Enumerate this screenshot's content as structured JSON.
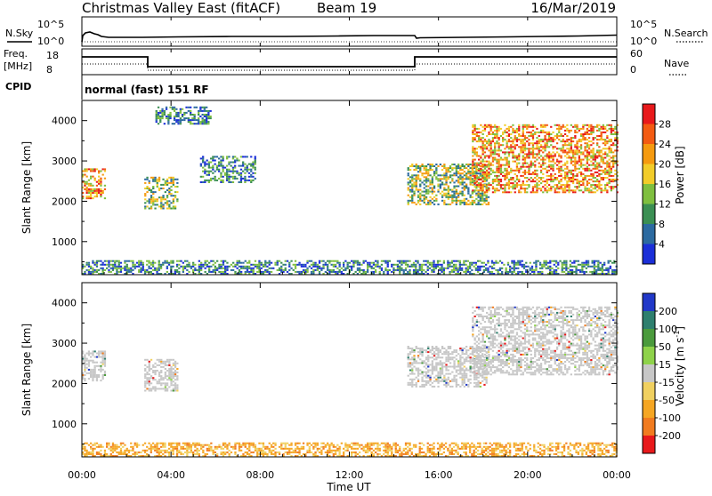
{
  "header": {
    "station": "Christmas Valley East (fitACF)",
    "beam": "Beam 19",
    "date": "16/Mar/2019"
  },
  "top_panel": {
    "left_label": "N.Sky",
    "left_ticks": [
      "10^5",
      "10^0"
    ],
    "right_label": "N.Search",
    "right_ticks": [
      "10^5",
      "10^0"
    ]
  },
  "freq_panel": {
    "left_label_line1": "Freq.",
    "left_label_line2": "[MHz]",
    "left_ticks": [
      "18",
      "8"
    ],
    "right_label": "Nave",
    "right_ticks": [
      "60",
      "0"
    ]
  },
  "cpid": {
    "label": "CPID",
    "mode": "normal (fast) 151 RF"
  },
  "power_colorbar": {
    "label": "Power [dB]",
    "ticks": [
      "28",
      "24",
      "20",
      "16",
      "12",
      "8",
      "4"
    ],
    "colors": [
      "#e8191b",
      "#f35b12",
      "#f59a0f",
      "#f2cc29",
      "#7fbf3f",
      "#3b8f53",
      "#2c6aa0",
      "#1b2fd8"
    ]
  },
  "velocity_colorbar": {
    "label_main": "Velocity [m s",
    "label_sup": "-1",
    "label_end": "]",
    "ticks": [
      "200",
      "100",
      "50",
      "15",
      "-15",
      "-50",
      "-100",
      "-200"
    ],
    "colors": [
      "#2138c8",
      "#2e7f6e",
      "#4a9a3c",
      "#8ed24a",
      "#c7c7c7",
      "#f0d060",
      "#f5a623",
      "#f17b1f",
      "#e8191b"
    ]
  },
  "x_axis": {
    "label": "Time UT",
    "ticks": [
      "00:00",
      "04:00",
      "08:00",
      "12:00",
      "16:00",
      "20:00",
      "00:00"
    ]
  },
  "y_axis": {
    "label": "Slant Range [km]",
    "ticks": [
      "4000",
      "3000",
      "2000",
      "1000"
    ]
  },
  "chart_data": [
    {
      "type": "heatmap",
      "title": "Power",
      "xlabel": "Time UT",
      "ylabel": "Slant Range [km]",
      "xlim_hours": [
        0,
        24
      ],
      "ylim_km": [
        180,
        4500
      ],
      "colorbar_label": "Power [dB]",
      "clim": [
        0,
        32
      ],
      "echo_regions": [
        {
          "t_start": 0.0,
          "t_end": 1.0,
          "r_min": 2050,
          "r_max": 2800,
          "level": "high"
        },
        {
          "t_start": 2.8,
          "t_end": 4.3,
          "r_min": 1800,
          "r_max": 2600,
          "level": "medium"
        },
        {
          "t_start": 3.3,
          "t_end": 5.8,
          "r_min": 3900,
          "r_max": 4350,
          "level": "low"
        },
        {
          "t_start": 5.3,
          "t_end": 7.8,
          "r_min": 2450,
          "r_max": 3100,
          "level": "low"
        },
        {
          "t_start": 14.6,
          "t_end": 18.2,
          "r_min": 1900,
          "r_max": 2900,
          "level": "medium"
        },
        {
          "t_start": 17.5,
          "t_end": 24.0,
          "r_min": 2200,
          "r_max": 3900,
          "level": "high"
        },
        {
          "t_start": 0.0,
          "t_end": 24.0,
          "r_min": 180,
          "r_max": 500,
          "level": "low"
        }
      ]
    },
    {
      "type": "heatmap",
      "title": "Velocity",
      "xlabel": "Time UT",
      "ylabel": "Slant Range [km]",
      "xlim_hours": [
        0,
        24
      ],
      "ylim_km": [
        180,
        4500
      ],
      "colorbar_label": "Velocity [m s-1]",
      "clim": [
        -200,
        200
      ],
      "echo_regions": [
        {
          "t_start": 0.0,
          "t_end": 1.0,
          "r_min": 2050,
          "r_max": 2800,
          "level": "ground"
        },
        {
          "t_start": 2.8,
          "t_end": 4.3,
          "r_min": 1800,
          "r_max": 2600,
          "level": "ground"
        },
        {
          "t_start": 14.6,
          "t_end": 18.2,
          "r_min": 1900,
          "r_max": 2900,
          "level": "ground"
        },
        {
          "t_start": 17.5,
          "t_end": 24.0,
          "r_min": 2200,
          "r_max": 3900,
          "level": "ground"
        },
        {
          "t_start": 0.0,
          "t_end": 24.0,
          "r_min": 180,
          "r_max": 500,
          "level": "negative"
        }
      ]
    }
  ]
}
